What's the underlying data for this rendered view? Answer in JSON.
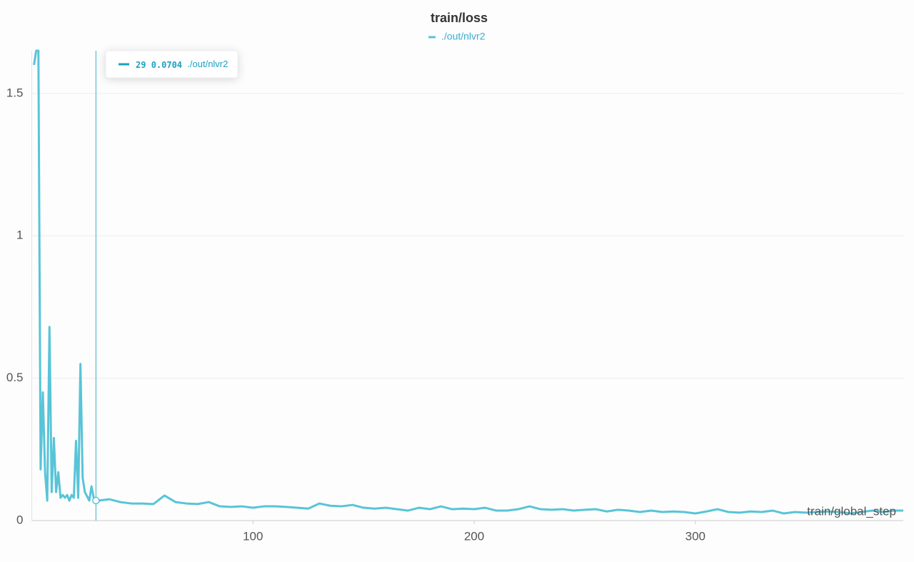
{
  "chart_data": {
    "type": "line",
    "title": "train/loss",
    "x_label": "train/global_step",
    "x": [
      1,
      2,
      3,
      4,
      5,
      6,
      7,
      8,
      9,
      10,
      11,
      12,
      13,
      14,
      15,
      16,
      17,
      18,
      19,
      20,
      21,
      22,
      23,
      24,
      25,
      26,
      27,
      28,
      29,
      30,
      35,
      40,
      45,
      50,
      55,
      60,
      65,
      70,
      75,
      80,
      85,
      90,
      95,
      100,
      105,
      110,
      115,
      120,
      125,
      130,
      135,
      140,
      145,
      150,
      155,
      160,
      165,
      170,
      175,
      180,
      185,
      190,
      195,
      200,
      205,
      210,
      215,
      220,
      225,
      230,
      235,
      240,
      245,
      250,
      255,
      260,
      265,
      270,
      275,
      280,
      285,
      290,
      295,
      300,
      305,
      310,
      315,
      320,
      325,
      330,
      335,
      340,
      345,
      350,
      355,
      360,
      365,
      370,
      375,
      380,
      385,
      390,
      394
    ],
    "series": [
      {
        "name": "./out/nlvr2",
        "color": "#58c4d8",
        "values": [
          1.6,
          1.65,
          1.65,
          0.18,
          0.45,
          0.17,
          0.07,
          0.68,
          0.1,
          0.29,
          0.1,
          0.17,
          0.08,
          0.09,
          0.08,
          0.09,
          0.07,
          0.09,
          0.08,
          0.28,
          0.08,
          0.55,
          0.15,
          0.1,
          0.085,
          0.07,
          0.12,
          0.08,
          0.0704,
          0.07,
          0.075,
          0.065,
          0.06,
          0.06,
          0.058,
          0.088,
          0.065,
          0.06,
          0.058,
          0.065,
          0.05,
          0.048,
          0.05,
          0.045,
          0.05,
          0.05,
          0.048,
          0.045,
          0.042,
          0.06,
          0.052,
          0.05,
          0.055,
          0.045,
          0.042,
          0.045,
          0.04,
          0.035,
          0.045,
          0.04,
          0.05,
          0.04,
          0.042,
          0.04,
          0.045,
          0.035,
          0.035,
          0.04,
          0.05,
          0.04,
          0.038,
          0.04,
          0.035,
          0.038,
          0.04,
          0.032,
          0.038,
          0.035,
          0.03,
          0.035,
          0.03,
          0.032,
          0.03,
          0.025,
          0.032,
          0.04,
          0.03,
          0.028,
          0.032,
          0.03,
          0.035,
          0.025,
          0.03,
          0.028,
          0.03,
          0.032,
          0.03,
          0.025,
          0.03,
          0.035,
          0.03,
          0.035,
          0.035
        ]
      }
    ],
    "xlim": [
      0,
      394
    ],
    "ylim": [
      0,
      1.65
    ],
    "xticks": [
      100,
      200,
      300
    ],
    "yticks": [
      0,
      0.5,
      1,
      1.5
    ],
    "grid": true,
    "hover_index": 28
  }
}
